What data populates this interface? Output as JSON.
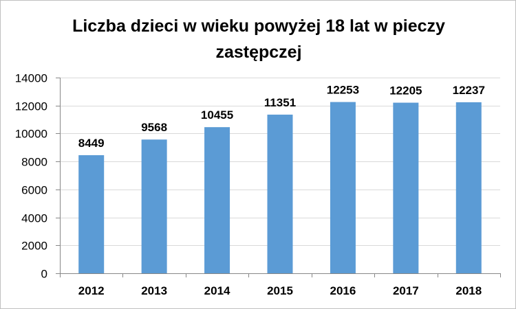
{
  "chart_data": {
    "type": "bar",
    "title_line1": "Liczba dzieci w wieku powyżej 18 lat w pieczy",
    "title_line2": "zastępczej",
    "categories": [
      "2012",
      "2013",
      "2014",
      "2015",
      "2016",
      "2017",
      "2018"
    ],
    "values": [
      8449,
      9568,
      10455,
      11351,
      12253,
      12205,
      12237
    ],
    "data_labels": [
      "8449",
      "9568",
      "10455",
      "11351",
      "12253",
      "12205",
      "12237"
    ],
    "yticks": [
      "0",
      "2000",
      "4000",
      "6000",
      "8000",
      "10000",
      "12000",
      "14000"
    ],
    "ylim": [
      0,
      14000
    ],
    "xlabel": "",
    "ylabel": "",
    "grid": true,
    "legend": "none",
    "colors": {
      "bar": "#5b9bd5",
      "grid": "#d9d9d9",
      "axis": "#868686"
    }
  }
}
